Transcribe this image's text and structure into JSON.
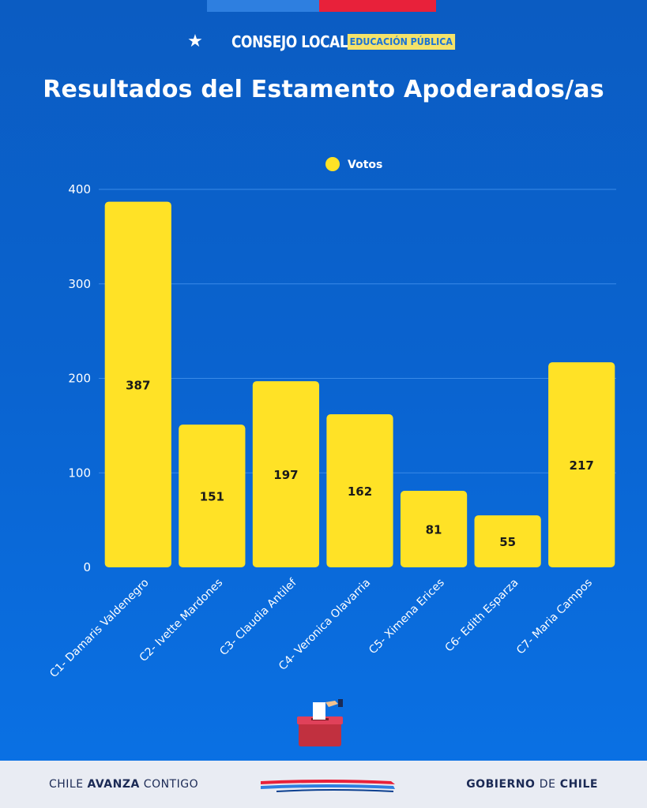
{
  "header": {
    "brand_main": "CONSEJO LOCAL",
    "brand_sub": "EDUCACIÓN PÚBLICA",
    "title": "Resultados del Estamento Apoderados/as"
  },
  "footer": {
    "left_a": "CHILE ",
    "left_b": "AVANZA",
    "left_c": " CONTIGO",
    "right_a": "GOBIERNO ",
    "right_b": "DE",
    "right_c": " CHILE"
  },
  "colors": {
    "bar": "#ffe226",
    "label": "#1a1a1a",
    "grid": "#3a8ae8"
  },
  "chart_data": {
    "type": "bar",
    "categories": [
      "C1- Damaris Valdenegro",
      "C2- Ivette Mardones",
      "C3- Claudia Antilef",
      "C4- Veronica Olavarria",
      "C5- Ximena Erices",
      "C6- Edith Esparza",
      "C7- Maria Campos"
    ],
    "series": [
      {
        "name": "Votos",
        "values": [
          387,
          151,
          197,
          162,
          81,
          55,
          217
        ]
      }
    ],
    "ylim": [
      0,
      400
    ],
    "yticks": [
      0,
      100,
      200,
      300,
      400
    ],
    "grid": true,
    "legend": "top-center",
    "title": "",
    "xlabel": "",
    "ylabel": ""
  }
}
